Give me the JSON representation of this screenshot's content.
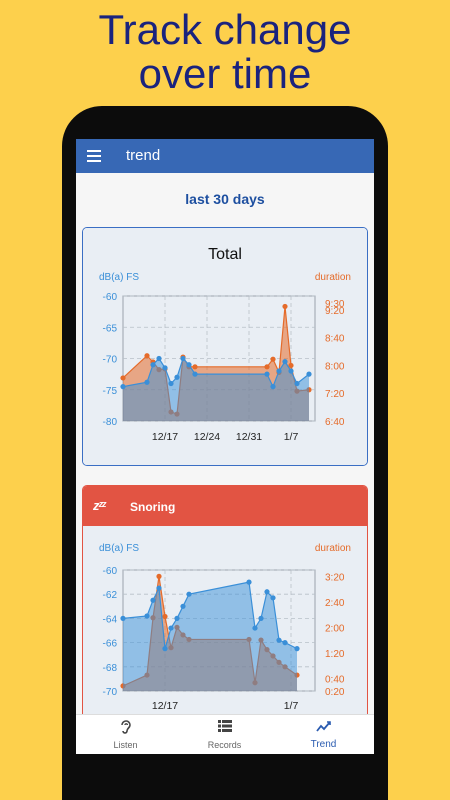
{
  "headline": {
    "line1": "Track change",
    "line2": "over time"
  },
  "appbar": {
    "title": "trend",
    "menu_icon": "hamburger-menu-icon"
  },
  "period": "last 30 days",
  "colors": {
    "accent": "#3768b5",
    "db": "#3a8fd8",
    "duration": "#e56b2a",
    "snoring": "#e25443",
    "background": "#fdd04c"
  },
  "total_card": {
    "title": "Total"
  },
  "snoring_card": {
    "title": "Snoring",
    "icon": "zzz-icon"
  },
  "nav": {
    "items": [
      {
        "label": "Listen",
        "icon": "ear-icon"
      },
      {
        "label": "Records",
        "icon": "list-icon"
      },
      {
        "label": "Trend",
        "icon": "trend-icon",
        "active": true
      }
    ]
  },
  "chart_data": [
    {
      "type": "area",
      "title": "Total",
      "left_axis_label": "dB(a) FS",
      "right_axis_label": "duration",
      "x_ticks": [
        "12/17",
        "12/24",
        "12/31",
        "1/7"
      ],
      "x_tick_days": [
        8,
        15,
        22,
        29
      ],
      "x_range": [
        1,
        33
      ],
      "y_left_ticks": [
        "-60",
        "-65",
        "-70",
        "-75",
        "-80"
      ],
      "y_left_range": [
        -80,
        -60
      ],
      "y_right_ticks": [
        "9:30",
        "9:20",
        "8:40",
        "8:00",
        "7:20",
        "6:40"
      ],
      "y_right_tick_values": [
        570,
        560,
        520,
        480,
        440,
        400
      ],
      "y_right_range": [
        400,
        580
      ],
      "series": [
        {
          "axis": "left",
          "color": "#3a8fd8",
          "points": [
            [
              1,
              -74.5
            ],
            [
              5,
              -73.8
            ],
            [
              6,
              -71
            ],
            [
              7,
              -70
            ],
            [
              8,
              -71.5
            ],
            [
              9,
              -74
            ],
            [
              10,
              -73
            ],
            [
              11,
              -70
            ],
            [
              12,
              -71
            ],
            [
              13,
              -72.5
            ],
            [
              25,
              -72.5
            ],
            [
              26,
              -74.5
            ],
            [
              27,
              -72
            ],
            [
              28,
              -70.5
            ],
            [
              29,
              -72
            ],
            [
              30,
              -74
            ],
            [
              32,
              -72.5
            ]
          ]
        },
        {
          "axis": "right",
          "color": "#e56b2a",
          "points": [
            [
              1,
              462
            ],
            [
              5,
              494
            ],
            [
              6,
              485
            ],
            [
              7,
              474
            ],
            [
              8,
              475
            ],
            [
              9,
              413
            ],
            [
              10,
              410
            ],
            [
              11,
              492
            ],
            [
              12,
              478
            ],
            [
              13,
              478
            ],
            [
              25,
              478
            ],
            [
              26,
              489
            ],
            [
              27,
              470
            ],
            [
              28,
              565
            ],
            [
              29,
              480
            ],
            [
              30,
              443
            ],
            [
              32,
              445
            ]
          ]
        }
      ]
    },
    {
      "type": "area",
      "title": "Snoring",
      "left_axis_label": "dB(a) FS",
      "right_axis_label": "duration",
      "x_ticks": [
        "12/17",
        "1/7"
      ],
      "x_tick_days": [
        8,
        29
      ],
      "x_range": [
        1,
        33
      ],
      "y_left_ticks": [
        "-60",
        "-62",
        "-64",
        "-66",
        "-68",
        "-70"
      ],
      "y_left_range": [
        -70,
        -60
      ],
      "y_right_ticks": [
        "3:20",
        "2:40",
        "2:00",
        "1:20",
        "0:40",
        "0:20"
      ],
      "y_right_tick_values": [
        200,
        160,
        120,
        80,
        40,
        20
      ],
      "y_right_range": [
        20,
        210
      ],
      "series": [
        {
          "axis": "left",
          "color": "#3a8fd8",
          "points": [
            [
              1,
              -64
            ],
            [
              5,
              -63.8
            ],
            [
              6,
              -62.5
            ],
            [
              7,
              -61.5
            ],
            [
              8,
              -66.5
            ],
            [
              9,
              -64.8
            ],
            [
              10,
              -64
            ],
            [
              11,
              -63
            ],
            [
              12,
              -62
            ],
            [
              22,
              -61
            ],
            [
              23,
              -64.8
            ],
            [
              24,
              -64
            ],
            [
              25,
              -61.8
            ],
            [
              26,
              -62.3
            ],
            [
              27,
              -65.8
            ],
            [
              28,
              -66
            ],
            [
              30,
              -66.5
            ]
          ]
        },
        {
          "axis": "right",
          "color": "#e56b2a",
          "points": [
            [
              1,
              28
            ],
            [
              5,
              45
            ],
            [
              6,
              135
            ],
            [
              7,
              200
            ],
            [
              8,
              137
            ],
            [
              9,
              88
            ],
            [
              10,
              120
            ],
            [
              11,
              108
            ],
            [
              12,
              101
            ],
            [
              22,
              101
            ],
            [
              23,
              33
            ],
            [
              24,
              100
            ],
            [
              25,
              85
            ],
            [
              26,
              75
            ],
            [
              27,
              65
            ],
            [
              28,
              58
            ],
            [
              30,
              45
            ]
          ]
        }
      ]
    }
  ]
}
